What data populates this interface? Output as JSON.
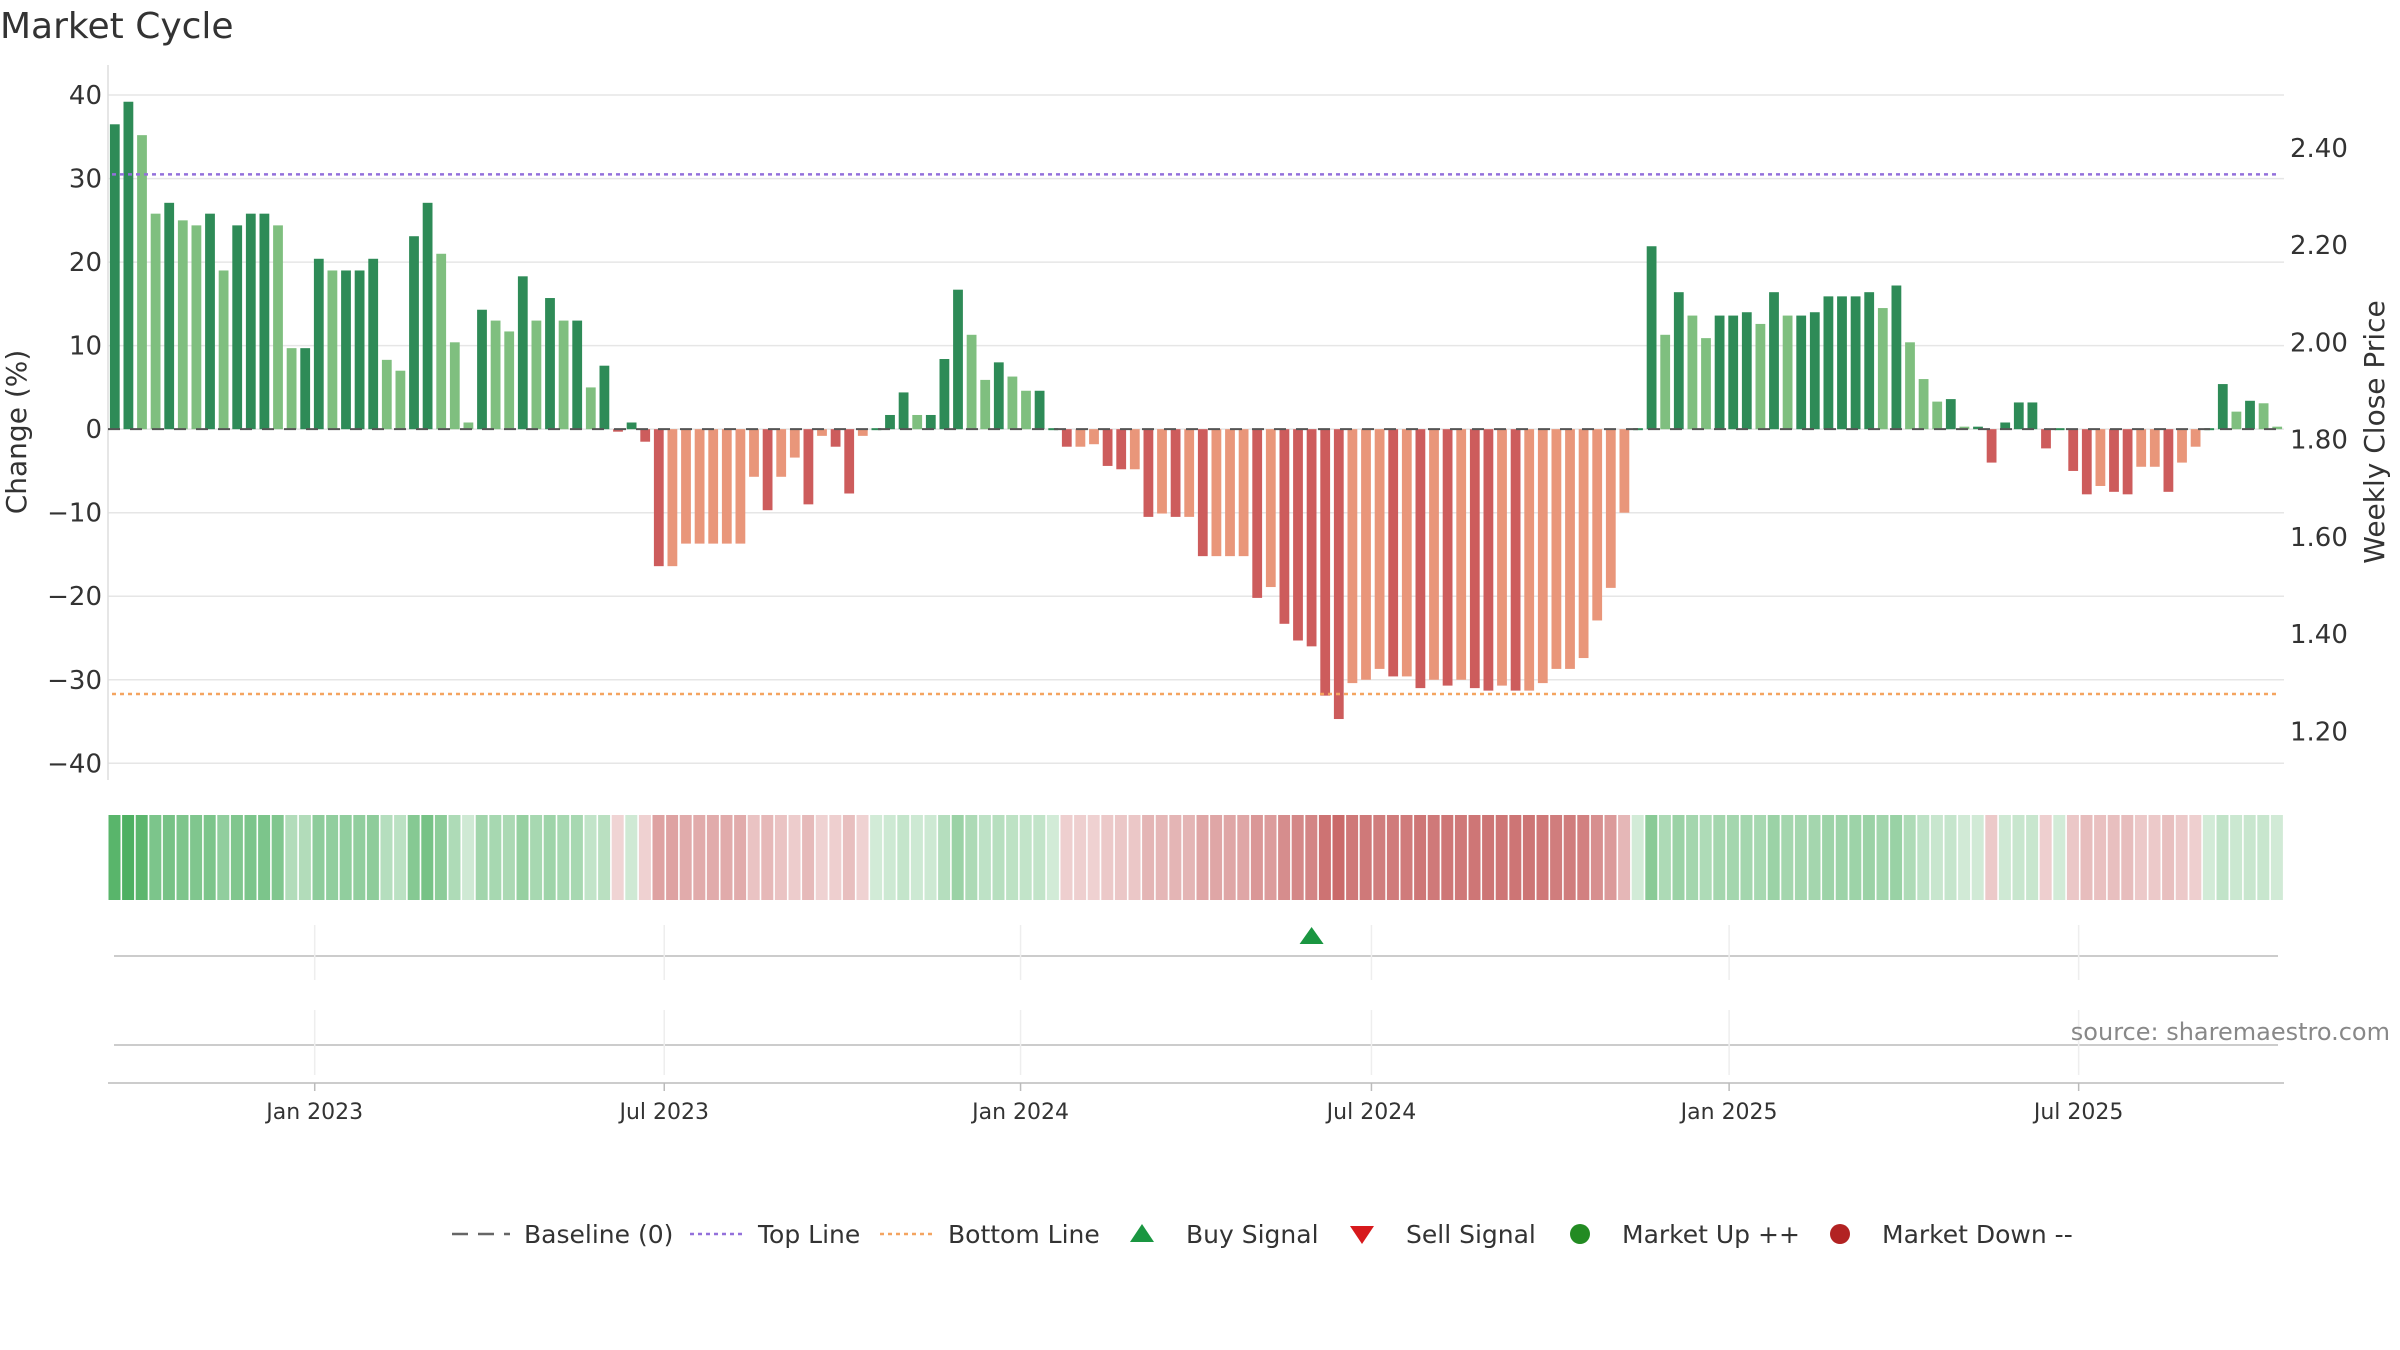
{
  "title": "Market Cycle",
  "source_text": "source: sharemaestro.com",
  "colors": {
    "pos_strong": "#2e8b57",
    "pos_light": "#7fbf7f",
    "neg_strong": "#cd5c5c",
    "neg_light": "#e9967a",
    "top_line": "#9370db",
    "bottom_line": "#f4a460",
    "buy": "#1a9641",
    "sell": "#d7191c",
    "market_up": "#228b22",
    "market_down": "#b22222"
  },
  "chart_data": {
    "type": "bar",
    "title": "Market Cycle",
    "ylabel": "Change (%)",
    "y2label": "Weekly Close Price",
    "ylim": [
      -42,
      43
    ],
    "y2lim": [
      1.1,
      2.56
    ],
    "yticks": [
      "40",
      "30",
      "20",
      "10",
      "0",
      "−10",
      "−20",
      "−30",
      "−40"
    ],
    "ytick_values": [
      40,
      30,
      20,
      10,
      0,
      -10,
      -20,
      -30,
      -40
    ],
    "y2ticks": [
      "2.40",
      "2.20",
      "2.00",
      "1.80",
      "1.60",
      "1.40",
      "1.20"
    ],
    "y2tick_values": [
      2.4,
      2.2,
      2.0,
      1.8,
      1.6,
      1.4,
      1.2
    ],
    "xticks": [
      "Jan 2023",
      "Jul 2023",
      "Jan 2024",
      "Jul 2024",
      "Jan 2025",
      "Jul 2025"
    ],
    "xtick_week_index": [
      15.2,
      40.9,
      67.1,
      92.9,
      119.2,
      144.9
    ],
    "top_line": 30.5,
    "bottom_line": -31.7,
    "baseline": 0,
    "values": [
      36.5,
      39.2,
      35.2,
      25.8,
      27.1,
      25.0,
      24.4,
      25.8,
      19.0,
      24.4,
      25.8,
      25.8,
      24.4,
      9.7,
      9.7,
      20.4,
      19.0,
      19.0,
      19.0,
      20.4,
      8.3,
      7.0,
      23.1,
      27.1,
      21.0,
      10.4,
      0.8,
      14.3,
      13.0,
      11.7,
      18.3,
      13.0,
      15.7,
      13.0,
      13.0,
      5.0,
      7.6,
      -0.3,
      0.8,
      -1.5,
      -16.4,
      -16.4,
      -13.7,
      -13.7,
      -13.7,
      -13.7,
      -13.7,
      -5.7,
      -9.7,
      -5.7,
      -3.4,
      -9.0,
      -0.8,
      -2.1,
      -7.7,
      -0.8,
      0.0,
      1.7,
      4.4,
      1.7,
      1.7,
      8.4,
      16.7,
      11.3,
      5.9,
      8.0,
      6.3,
      4.6,
      4.6,
      0.0,
      -2.1,
      -2.1,
      -1.8,
      -4.4,
      -4.8,
      -4.8,
      -10.5,
      -10.1,
      -10.5,
      -10.5,
      -15.2,
      -15.2,
      -15.2,
      -15.2,
      -20.2,
      -18.9,
      -23.3,
      -25.3,
      -26.0,
      -31.9,
      -34.7,
      -30.4,
      -30.0,
      -28.7,
      -29.6,
      -29.6,
      -31.0,
      -30.0,
      -30.7,
      -30.0,
      -31.0,
      -31.3,
      -30.7,
      -31.3,
      -31.3,
      -30.4,
      -28.7,
      -28.7,
      -27.4,
      -22.9,
      -19.0,
      -10.0,
      0.0,
      21.9,
      11.3,
      16.4,
      13.6,
      10.9,
      13.6,
      13.6,
      14.0,
      12.6,
      16.4,
      13.6,
      13.6,
      14.0,
      15.9,
      15.9,
      15.9,
      16.4,
      14.5,
      17.2,
      10.4,
      6.0,
      3.3,
      3.6,
      0.3,
      0.3,
      -4.0,
      0.8,
      3.2,
      3.2,
      -2.3,
      0.0,
      -5.0,
      -7.8,
      -6.8,
      -7.5,
      -7.8,
      -4.5,
      -4.5,
      -7.5,
      -4.0,
      -2.1,
      0.0,
      5.4,
      2.1,
      3.4,
      3.1,
      0.3
    ],
    "series": [
      {
        "name": "Baseline (0)"
      },
      {
        "name": "Top Line"
      },
      {
        "name": "Bottom Line"
      }
    ],
    "signals": [
      {
        "name": "Buy Signal",
        "week_index": 88
      }
    ],
    "legend": [
      "Baseline (0)",
      "Top Line",
      "Bottom Line",
      "Buy Signal",
      "Sell Signal",
      "Market Up ++",
      "Market Down --"
    ],
    "legend_position": "bottom",
    "grid": true
  }
}
